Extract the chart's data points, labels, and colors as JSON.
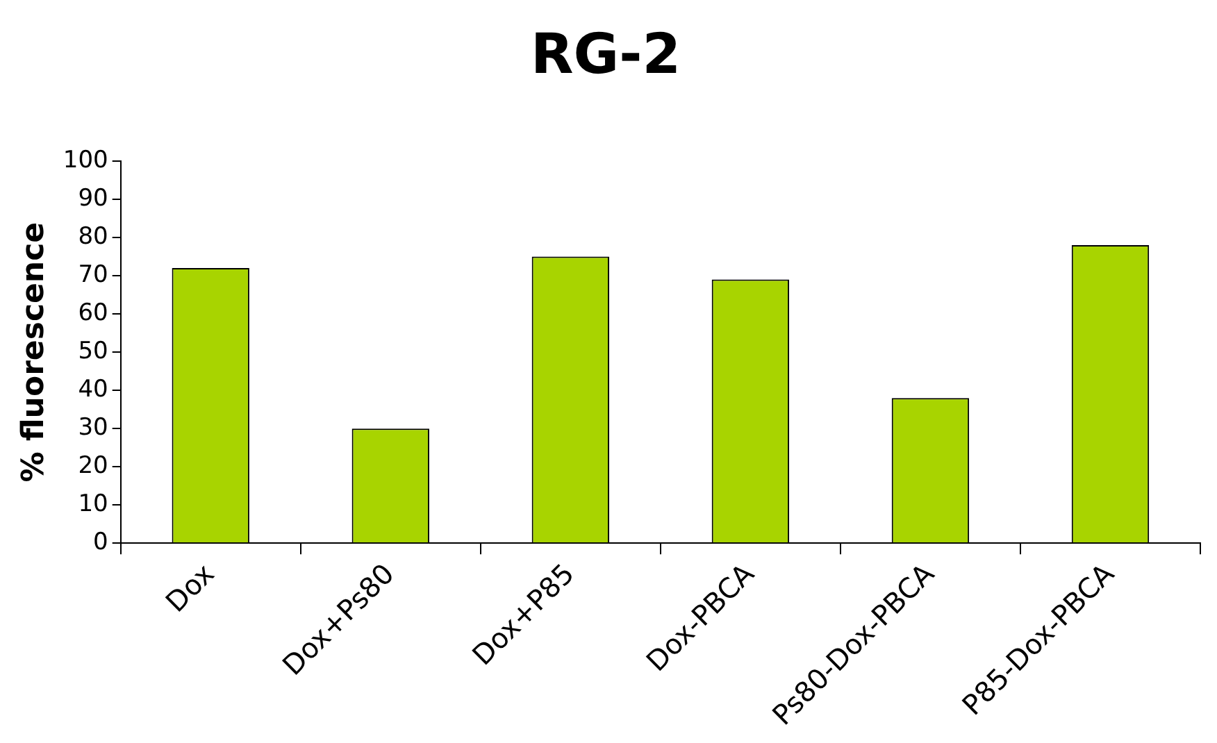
{
  "chart_data": {
    "type": "bar",
    "title": "RG-2",
    "ylabel": "% fluorescence",
    "categories": [
      "Dox",
      "Dox+Ps80",
      "Dox+P85",
      "Dox-PBCA",
      "Ps80-Dox-PBCA",
      "P85-Dox-PBCA"
    ],
    "values": [
      72,
      30,
      75,
      69,
      38,
      78
    ],
    "color": "#a8d400",
    "ylim": [
      0,
      100
    ],
    "yticks": [
      0,
      10,
      20,
      30,
      40,
      50,
      60,
      70,
      80,
      90,
      100
    ],
    "grid": false,
    "legend": false
  }
}
